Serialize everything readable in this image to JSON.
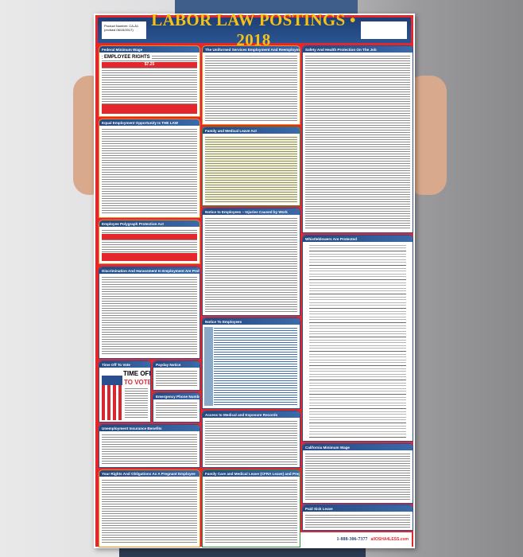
{
  "poster": {
    "title": "LABOR LAW POSTINGS • 2018",
    "product_label": "Product Number: CA-A1 (revised 06/15/2017)",
    "sections": {
      "federal_min_wage": "Federal Minimum Wage",
      "employee_rights": "EMPLOYEE RIGHTS",
      "min_wage_value": "$7.25",
      "eeo": "Equal Employment Opportunity Is THE LAW",
      "polygraph": "Employee Polygraph Protection Act",
      "discrimination": "Discrimination And Harassment In Employment Are Prohibited By Law",
      "time_off_vote": "Time Off To Vote",
      "time_off_big": "TIME OFF",
      "to_vote_big": "TO VOTE",
      "payday": "Payday Notice",
      "emergency": "Emergency Phone Numbers",
      "unemployment": "Unemployment Insurance Benefits",
      "pregnant": "Your Rights And Obligations As A Pregnant Employee",
      "userra": "The Uniformed Services Employment And Reemployment Rights Act",
      "fmla": "Family and Medical Leave Act",
      "injuries": "Notice to Employees – Injuries Caused by Work",
      "notice": "Notice To Employees",
      "access": "Access to Medical and Exposure Records",
      "cfra": "Family Care and Medical Leave (CFRA Leave) and Pregnancy Disability Leave",
      "safety": "Safety And Health Protection On The Job",
      "whistle": "Whistleblowers Are Protected",
      "ca_min_wage": "California Minimum Wage",
      "sick": "Paid Sick Leave"
    },
    "footer": {
      "phone": "1-888-306-7377",
      "logo": "allOSHA4LESS.com"
    }
  },
  "colors": {
    "header": "#1f3f74",
    "title": "#f2c21b",
    "frame": "#e4262d"
  }
}
